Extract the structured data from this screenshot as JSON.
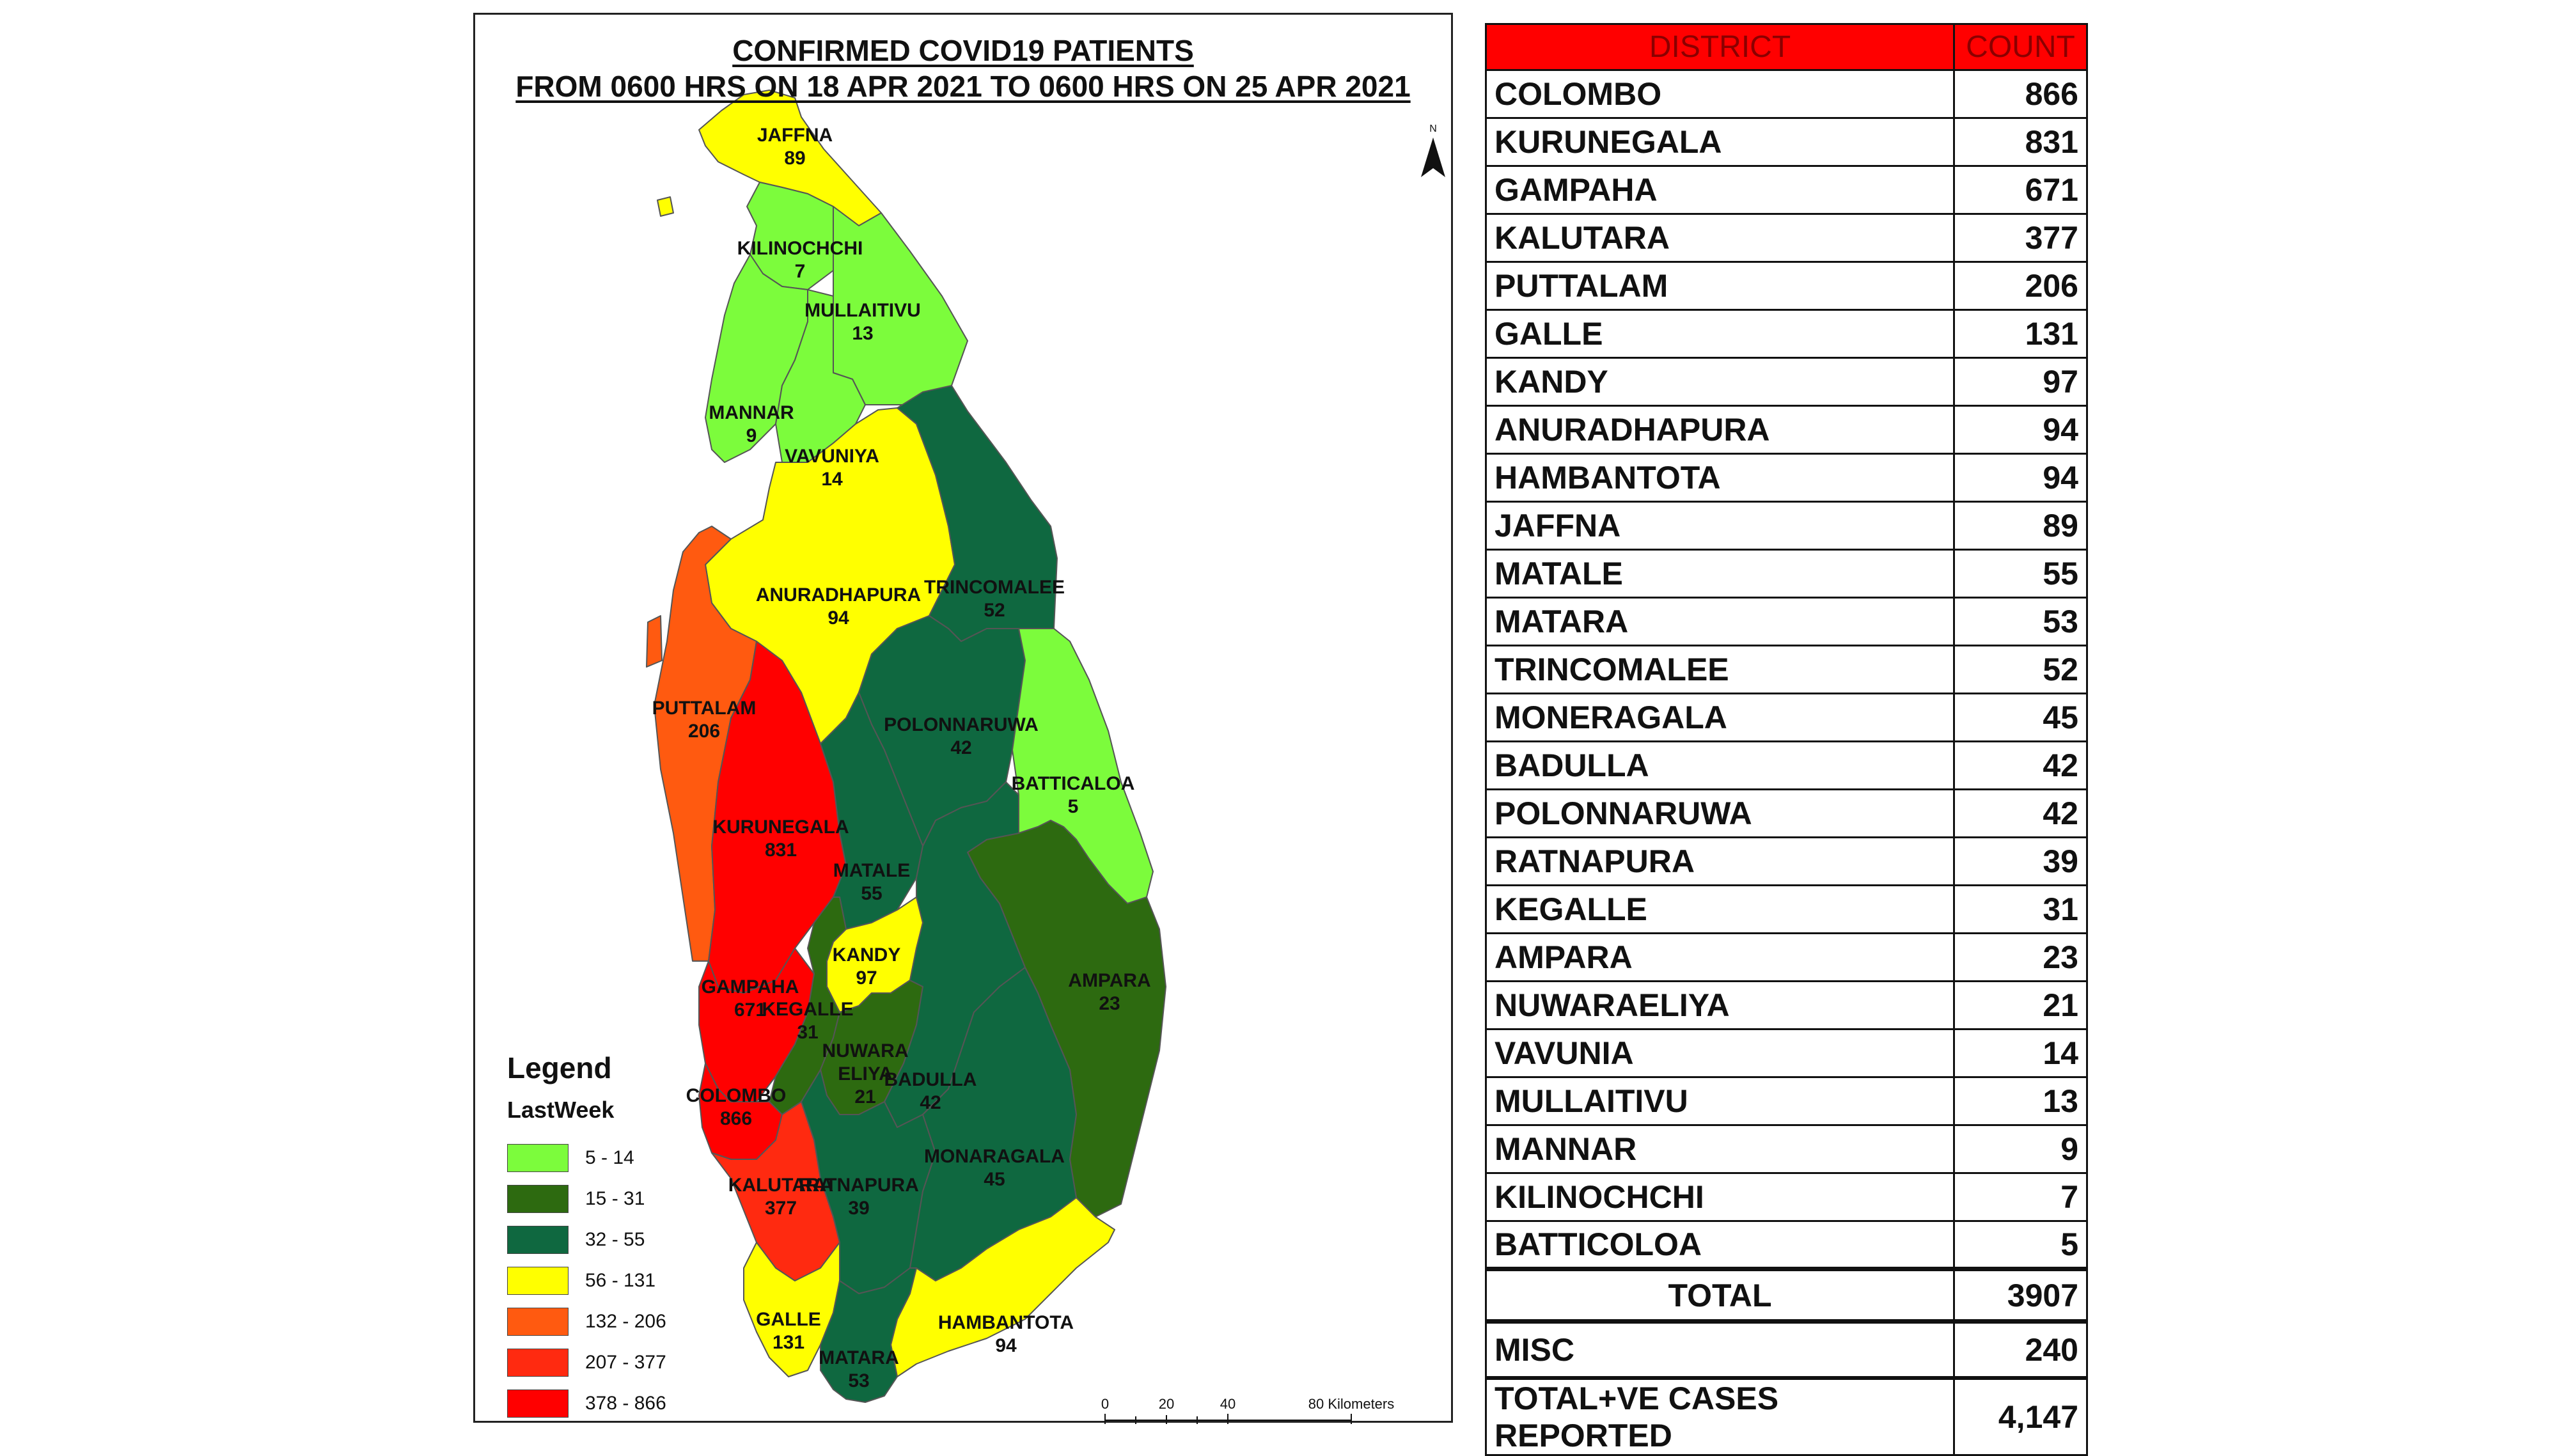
{
  "map": {
    "title_line1": "CONFIRMED COVID19 PATIENTS",
    "title_line2": "FROM 0600 HRS ON 18 APR 2021 TO 0600 HRS ON 25 APR 2021",
    "north_label": "N",
    "scale": {
      "ticks": [
        "0",
        "20",
        "40"
      ],
      "end_label": "80 Kilometers"
    },
    "legend": {
      "title": "Legend",
      "subtitle": "LastWeek",
      "classes": [
        {
          "range": "5 - 14",
          "color": "#7cfc3c"
        },
        {
          "range": "15 - 31",
          "color": "#2d6a10"
        },
        {
          "range": "32 - 55",
          "color": "#0f6840"
        },
        {
          "range": "56 - 131",
          "color": "#ffff00"
        },
        {
          "range": "132 - 206",
          "color": "#ff5a10"
        },
        {
          "range": "207 - 377",
          "color": "#ff2a10"
        },
        {
          "range": "378 - 866",
          "color": "#ff0000"
        }
      ]
    },
    "districts": [
      {
        "id": "jaffna",
        "name": "JAFFNA",
        "value": "89",
        "color": "#ffff00"
      },
      {
        "id": "kilinochchi",
        "name": "KILINOCHCHI",
        "value": "7",
        "color": "#7cfc3c"
      },
      {
        "id": "mullaitivu",
        "name": "MULLAITIVU",
        "value": "13",
        "color": "#7cfc3c"
      },
      {
        "id": "mannar",
        "name": "MANNAR",
        "value": "9",
        "color": "#7cfc3c"
      },
      {
        "id": "vavuniya",
        "name": "VAVUNIYA",
        "value": "14",
        "color": "#7cfc3c"
      },
      {
        "id": "anuradhapura",
        "name": "ANURADHAPURA",
        "value": "94",
        "color": "#ffff00"
      },
      {
        "id": "trincomalee",
        "name": "TRINCOMALEE",
        "value": "52",
        "color": "#0f6840"
      },
      {
        "id": "puttalam",
        "name": "PUTTALAM",
        "value": "206",
        "color": "#ff5a10"
      },
      {
        "id": "polonnaruwa",
        "name": "POLONNARUWA",
        "value": "42",
        "color": "#0f6840"
      },
      {
        "id": "batticaloa",
        "name": "BATTICALOA",
        "value": "5",
        "color": "#7cfc3c"
      },
      {
        "id": "kurunegala",
        "name": "KURUNEGALA",
        "value": "831",
        "color": "#ff0000"
      },
      {
        "id": "matale",
        "name": "MATALE",
        "value": "55",
        "color": "#0f6840"
      },
      {
        "id": "ampara",
        "name": "AMPARA",
        "value": "23",
        "color": "#2d6a10"
      },
      {
        "id": "kandy",
        "name": "KANDY",
        "value": "97",
        "color": "#ffff00"
      },
      {
        "id": "gampaha",
        "name": "GAMPAHA",
        "value": "671",
        "color": "#ff0000"
      },
      {
        "id": "kegalle",
        "name": "KEGALLE",
        "value": "31",
        "color": "#2d6a10"
      },
      {
        "id": "nuwaraeliya",
        "name": "NUWARA\nELIYA",
        "value": "21",
        "color": "#2d6a10"
      },
      {
        "id": "badulla",
        "name": "BADULLA",
        "value": "42",
        "color": "#0f6840"
      },
      {
        "id": "colombo",
        "name": "COLOMBO",
        "value": "866",
        "color": "#ff0000"
      },
      {
        "id": "kalutara",
        "name": "KALUTARA",
        "value": "377",
        "color": "#ff2a10"
      },
      {
        "id": "ratnapura",
        "name": "RATNAPURA",
        "value": "39",
        "color": "#0f6840"
      },
      {
        "id": "monaragala",
        "name": "MONARAGALA",
        "value": "45",
        "color": "#0f6840"
      },
      {
        "id": "galle",
        "name": "GALLE",
        "value": "131",
        "color": "#ffff00"
      },
      {
        "id": "hambantota",
        "name": "HAMBANTOTA",
        "value": "94",
        "color": "#ffff00"
      },
      {
        "id": "matara",
        "name": "MATARA",
        "value": "53",
        "color": "#0f6840"
      }
    ]
  },
  "table": {
    "headers": {
      "district": "DISTRICT",
      "count": "COUNT"
    },
    "rows": [
      {
        "district": "COLOMBO",
        "count": "866"
      },
      {
        "district": "KURUNEGALA",
        "count": "831"
      },
      {
        "district": "GAMPAHA",
        "count": "671"
      },
      {
        "district": "KALUTARA",
        "count": "377"
      },
      {
        "district": "PUTTALAM",
        "count": "206"
      },
      {
        "district": "GALLE",
        "count": "131"
      },
      {
        "district": "KANDY",
        "count": "97"
      },
      {
        "district": "ANURADHAPURA",
        "count": "94"
      },
      {
        "district": "HAMBANTOTA",
        "count": "94"
      },
      {
        "district": "JAFFNA",
        "count": "89"
      },
      {
        "district": "MATALE",
        "count": "55"
      },
      {
        "district": "MATARA",
        "count": "53"
      },
      {
        "district": "TRINCOMALEE",
        "count": "52"
      },
      {
        "district": "MONERAGALA",
        "count": "45"
      },
      {
        "district": "BADULLA",
        "count": "42"
      },
      {
        "district": "POLONNARUWA",
        "count": "42"
      },
      {
        "district": "RATNAPURA",
        "count": "39"
      },
      {
        "district": "KEGALLE",
        "count": "31"
      },
      {
        "district": "AMPARA",
        "count": "23"
      },
      {
        "district": "NUWARAELIYA",
        "count": "21"
      },
      {
        "district": "VAVUNIA",
        "count": "14"
      },
      {
        "district": "MULLAITIVU",
        "count": "13"
      },
      {
        "district": "MANNAR",
        "count": "9"
      },
      {
        "district": "KILINOCHCHI",
        "count": "7"
      },
      {
        "district": "BATTICOLOA",
        "count": "5"
      }
    ],
    "total": {
      "label": "TOTAL",
      "count": "3907"
    },
    "misc": {
      "label": "MISC",
      "count": "240"
    },
    "grand": {
      "label": "TOTAL+VE CASES REPORTED",
      "count": "4,147"
    }
  }
}
